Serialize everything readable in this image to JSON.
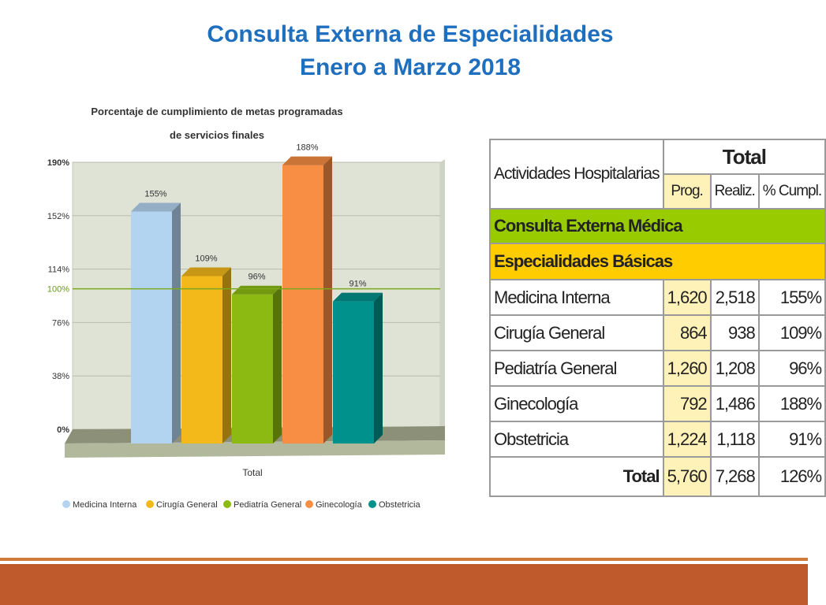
{
  "slide": {
    "title_line1": "Consulta Externa de Especialidades",
    "title_line2": "Enero a Marzo 2018"
  },
  "chart_data": {
    "type": "bar",
    "title_line1": "Porcentaje de cumplimiento de metas programadas",
    "title_line2": "de servicios finales",
    "xlabel": "Total",
    "ylabel": "",
    "ylim": [
      0,
      190
    ],
    "y_ticks": [
      "0%",
      "38%",
      "76%",
      "114%",
      "152%",
      "190%"
    ],
    "target_line": {
      "value": 100,
      "label": "100%"
    },
    "categories": [
      "Total"
    ],
    "series": [
      {
        "name": "Medicina Interna",
        "values": [
          155
        ],
        "label": "155%",
        "color": "#b3d4f0"
      },
      {
        "name": "Cirugía General",
        "values": [
          109
        ],
        "label": "109%",
        "color": "#f3b81a"
      },
      {
        "name": "Pediatría General",
        "values": [
          96
        ],
        "label": "96%",
        "color": "#8cba12"
      },
      {
        "name": "Ginecología",
        "values": [
          188
        ],
        "label": "188%",
        "color": "#f88d44"
      },
      {
        "name": "Obstetricia",
        "values": [
          91
        ],
        "label": "91%",
        "color": "#00918c"
      }
    ],
    "legend_position": "bottom",
    "grid": true
  },
  "table": {
    "header_main": "Actividades Hospitalarias",
    "header_total": "Total",
    "col_prog": "Prog.",
    "col_realiz": "Realiz.",
    "col_cumpl": "% Cumpl.",
    "section1": "Consulta Externa Médica",
    "section2": "Especialidades Básicas",
    "rows": [
      {
        "name": "Medicina Interna",
        "prog": "1,620",
        "realiz": "2,518",
        "cumpl": "155%"
      },
      {
        "name": "Cirugía General",
        "prog": "864",
        "realiz": "938",
        "cumpl": "109%"
      },
      {
        "name": "Pediatría General",
        "prog": "1,260",
        "realiz": "1,208",
        "cumpl": "96%"
      },
      {
        "name": "Ginecología",
        "prog": "792",
        "realiz": "1,486",
        "cumpl": "188%"
      },
      {
        "name": "Obstetricia",
        "prog": "1,224",
        "realiz": "1,118",
        "cumpl": "91%"
      }
    ],
    "total_label": "Total",
    "total_prog": "5,760",
    "total_realiz": "7,268",
    "total_cumpl": "126%"
  },
  "colors": {
    "title": "#1f6fbf",
    "footer": "#bf5a2c",
    "section1": "#99cc00",
    "section2": "#ffcc00",
    "target_line": "#7aa81e"
  }
}
